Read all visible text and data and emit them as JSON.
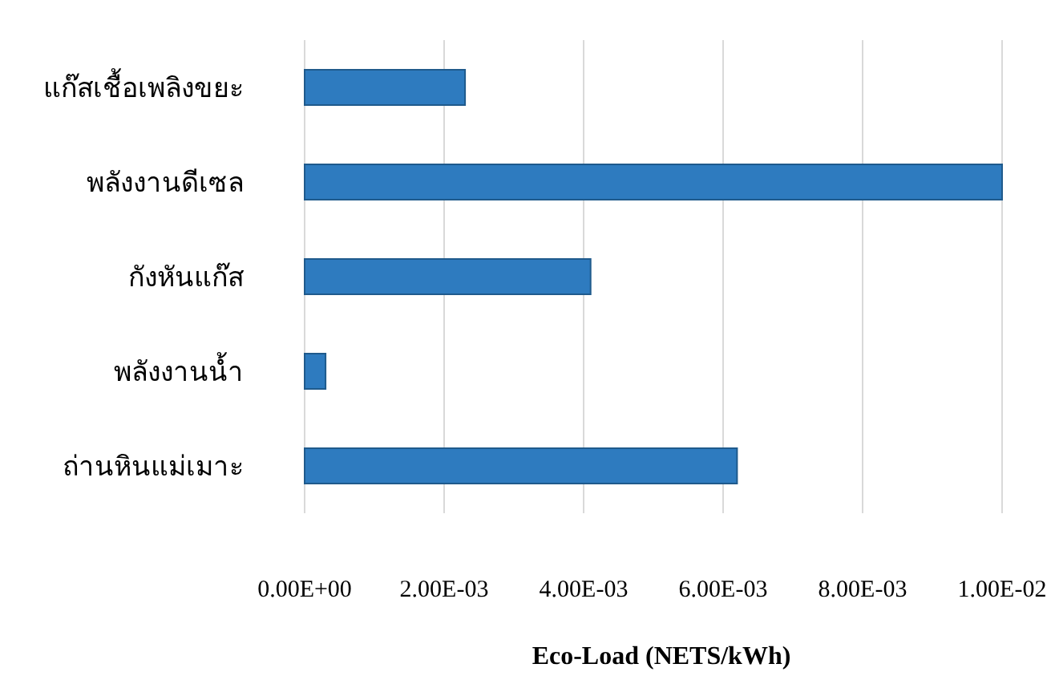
{
  "chart_data": {
    "type": "bar",
    "orientation": "horizontal",
    "xlabel": "Eco-Load (NETS/kWh)",
    "categories": [
      "แก๊สเชื้อเพลิงขยะ",
      "พลังงานดีเซล",
      "กังหันแก๊ส",
      "พลังงานน้ำ",
      "ถ่านหินแม่เมาะ"
    ],
    "values": [
      0.0023,
      0.01,
      0.0041,
      0.0003,
      0.0062
    ],
    "color": "#2e7bbf",
    "xlim": [
      0,
      0.01
    ],
    "xticks": [
      {
        "value": 0,
        "label": "0.00E+00"
      },
      {
        "value": 0.002,
        "label": "2.00E-03"
      },
      {
        "value": 0.004,
        "label": "4.00E-03"
      },
      {
        "value": 0.006,
        "label": "6.00E-03"
      },
      {
        "value": 0.008,
        "label": "8.00E-03"
      },
      {
        "value": 0.01,
        "label": "1.00E-02"
      }
    ],
    "grid": "x"
  }
}
